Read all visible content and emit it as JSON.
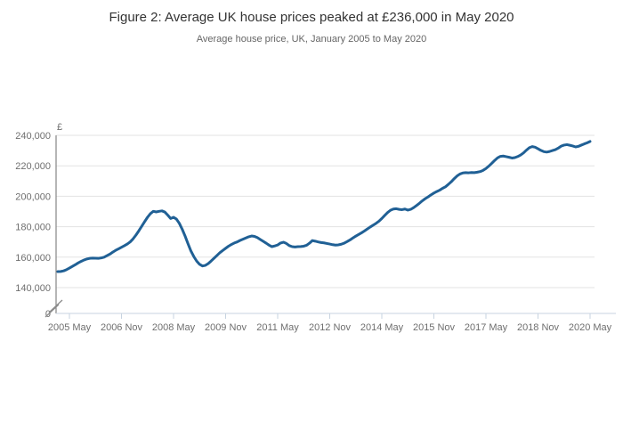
{
  "figure": {
    "title": "Figure 2: Average UK house prices peaked at £236,000 in May 2020",
    "subtitle": "Average house price, UK, January 2005 to May 2020"
  },
  "chart_data": {
    "type": "line",
    "title": "Figure 2: Average UK house prices peaked at £236,000 in May 2020",
    "subtitle": "Average house price, UK, January 2005 to May 2020",
    "unit_label": "£",
    "x_start": "2005-01",
    "x_end": "2020-05",
    "x_frequency": "monthly",
    "x_tick_labels": [
      "2005 May",
      "2006 Nov",
      "2008 May",
      "2009 Nov",
      "2011 May",
      "2012 Nov",
      "2014 May",
      "2015 Nov",
      "2017 May",
      "2018 Nov",
      "2020 May"
    ],
    "x_tick_month_indices": [
      4,
      22,
      40,
      58,
      76,
      94,
      112,
      130,
      148,
      166,
      184
    ],
    "y_ticks": [
      {
        "value": 240000,
        "label": "240,000"
      },
      {
        "value": 220000,
        "label": "220,000"
      },
      {
        "value": 200000,
        "label": "200,000"
      },
      {
        "value": 180000,
        "label": "180,000"
      },
      {
        "value": 160000,
        "label": "160,000"
      },
      {
        "value": 140000,
        "label": "140,000"
      },
      {
        "value": 0,
        "label": "0"
      }
    ],
    "y_axis_break": true,
    "ylim_data": [
      140000,
      240000
    ],
    "grid": "horizontal",
    "legend": "none",
    "series": [
      {
        "name": "Average house price, UK (£)",
        "color": "#206095",
        "values": [
          150500,
          150600,
          151000,
          151800,
          152800,
          153900,
          155000,
          156200,
          157200,
          158100,
          158800,
          159200,
          159400,
          159300,
          159200,
          159500,
          160000,
          161000,
          162000,
          163300,
          164500,
          165500,
          166500,
          167500,
          168600,
          170000,
          172000,
          174500,
          177300,
          180300,
          183300,
          186200,
          188600,
          190100,
          189700,
          190100,
          190400,
          189600,
          187600,
          185400,
          186200,
          185000,
          182200,
          178300,
          173800,
          168800,
          164100,
          160400,
          157400,
          155300,
          154200,
          154600,
          155800,
          157500,
          159300,
          161100,
          162900,
          164400,
          165800,
          167200,
          168300,
          169300,
          170000,
          171000,
          171800,
          172600,
          173400,
          173900,
          173600,
          172800,
          171600,
          170400,
          169200,
          167900,
          166900,
          167400,
          168000,
          169300,
          169800,
          169000,
          167600,
          166900,
          166700,
          166900,
          167000,
          167200,
          167800,
          169200,
          170900,
          170500,
          170000,
          169600,
          169400,
          169000,
          168600,
          168200,
          167900,
          168100,
          168500,
          169200,
          170200,
          171300,
          172600,
          173800,
          174900,
          176000,
          177200,
          178500,
          179800,
          181000,
          182200,
          183600,
          185400,
          187400,
          189300,
          190800,
          191600,
          191800,
          191400,
          191200,
          191600,
          190900,
          191400,
          192500,
          193900,
          195400,
          197000,
          198400,
          199600,
          200900,
          202100,
          203100,
          204000,
          205200,
          206200,
          207800,
          209500,
          211500,
          213300,
          214600,
          215300,
          215500,
          215400,
          215600,
          215500,
          215800,
          216200,
          217000,
          218200,
          219800,
          221600,
          223500,
          225200,
          226200,
          226400,
          226000,
          225600,
          225100,
          225400,
          226100,
          227100,
          228500,
          230300,
          231900,
          232600,
          232200,
          231200,
          230100,
          229300,
          229000,
          229400,
          230000,
          230600,
          231600,
          232900,
          233600,
          233900,
          233500,
          233000,
          232400,
          232800,
          233600,
          234400,
          235100,
          236000
        ]
      }
    ],
    "peak_annotation": {
      "label_value": "£236,000",
      "label_date": "May 2020"
    }
  },
  "colors": {
    "line": "#206095",
    "gridline": "#e3e3e3",
    "y_axis": "#6e6e6e",
    "x_axis": "#c7d3e0",
    "tick_label": "#6f6f6f",
    "break_mark": "#8c8c8c",
    "title": "#333333",
    "subtitle": "#666666"
  }
}
